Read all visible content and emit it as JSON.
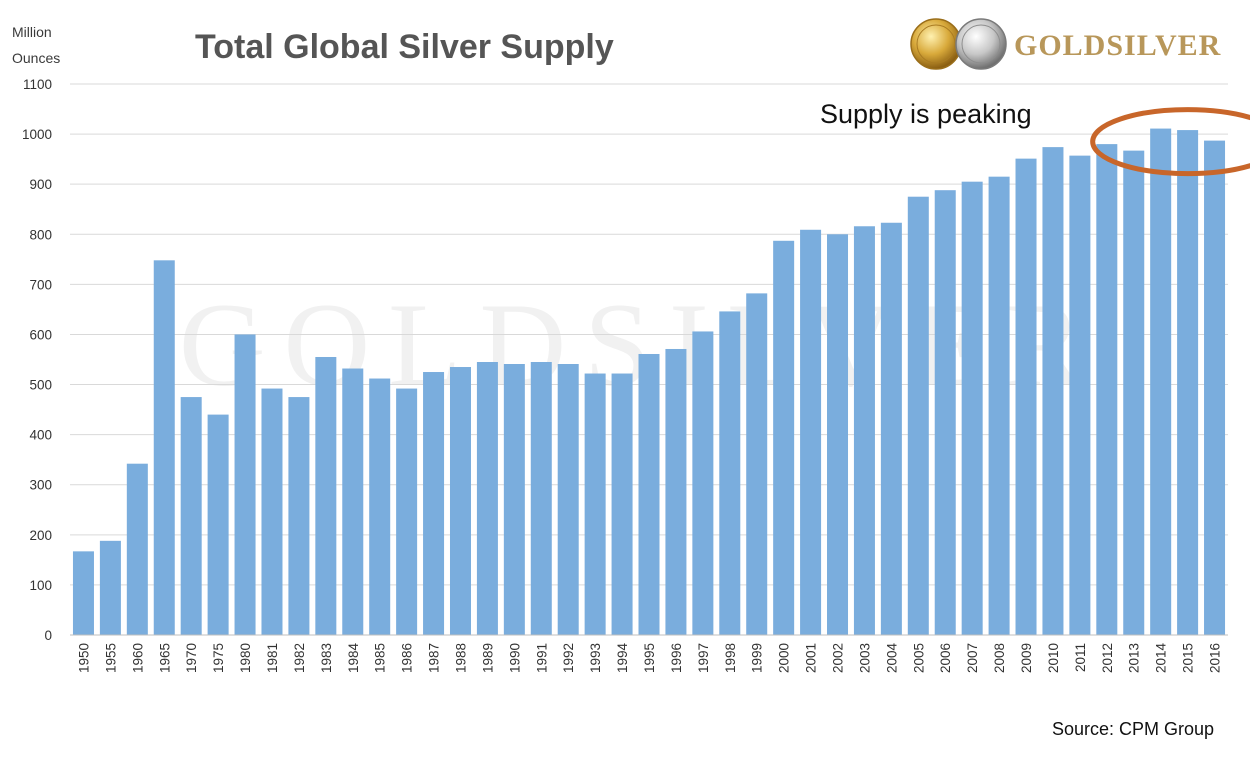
{
  "brand_colors": {
    "bar": "#7aaddd",
    "highlight": "#c8662a",
    "gold": "#b8975a",
    "grid": "#d9d9d9"
  },
  "logo": {
    "text": "GOLDSILVER",
    "icons": [
      "gold-coin-icon",
      "silver-coin-icon"
    ]
  },
  "watermark": "GOLDSILVER",
  "annotation": {
    "text": "Supply is peaking",
    "highlighted_categories": [
      "2014",
      "2015",
      "2016"
    ]
  },
  "source": "Source: CPM Group",
  "chart_data": {
    "type": "bar",
    "title": "Total Global Silver Supply",
    "ylabel": "Million Ounces",
    "ylabel_lines": [
      "Million",
      "Ounces"
    ],
    "xlabel": "",
    "ylim": [
      0,
      1100
    ],
    "yticks": [
      0,
      100,
      200,
      300,
      400,
      500,
      600,
      700,
      800,
      900,
      1000,
      1100
    ],
    "grid": true,
    "categories": [
      "1950",
      "1955",
      "1960",
      "1965",
      "1970",
      "1975",
      "1980",
      "1981",
      "1982",
      "1983",
      "1984",
      "1985",
      "1986",
      "1987",
      "1988",
      "1989",
      "1990",
      "1991",
      "1992",
      "1993",
      "1994",
      "1995",
      "1996",
      "1997",
      "1998",
      "1999",
      "2000",
      "2001",
      "2002",
      "2003",
      "2004",
      "2005",
      "2006",
      "2007",
      "2008",
      "2009",
      "2010",
      "2011",
      "2012",
      "2013",
      "2014",
      "2015",
      "2016"
    ],
    "values": [
      167,
      188,
      342,
      748,
      475,
      440,
      600,
      492,
      475,
      555,
      532,
      512,
      492,
      525,
      535,
      545,
      541,
      545,
      541,
      522,
      522,
      561,
      571,
      606,
      646,
      682,
      787,
      809,
      800,
      816,
      823,
      875,
      888,
      905,
      915,
      951,
      974,
      957,
      980,
      967,
      1011,
      1008,
      987
    ]
  }
}
